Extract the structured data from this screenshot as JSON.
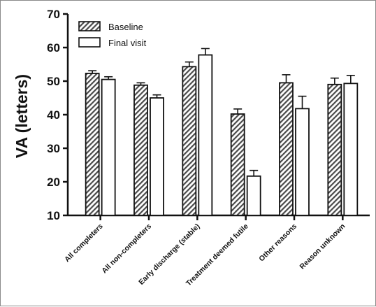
{
  "chart_data": {
    "type": "bar",
    "title": "",
    "xlabel": "",
    "ylabel": "VA (letters)",
    "ylim": [
      10,
      70
    ],
    "yticks": [
      10,
      20,
      30,
      40,
      50,
      60,
      70
    ],
    "grid": false,
    "legend_position": "top-left",
    "categories": [
      "All completers",
      "All non-completers",
      "Early discharge (stable)",
      "Treatment deemed futile",
      "Other reasons",
      "Reason unknown"
    ],
    "series": [
      {
        "name": "Baseline",
        "pattern": "diagonal-hatch",
        "color": "#555555",
        "values": [
          52.3,
          48.8,
          54.3,
          40.2,
          49.5,
          49.0
        ],
        "error": [
          0.8,
          0.7,
          1.4,
          1.5,
          2.4,
          1.9
        ]
      },
      {
        "name": "Final visit",
        "pattern": "open",
        "color": "#ffffff",
        "values": [
          50.5,
          45.0,
          57.8,
          21.7,
          41.8,
          49.3
        ],
        "error": [
          0.8,
          0.9,
          1.9,
          1.7,
          3.7,
          2.4
        ]
      }
    ]
  }
}
